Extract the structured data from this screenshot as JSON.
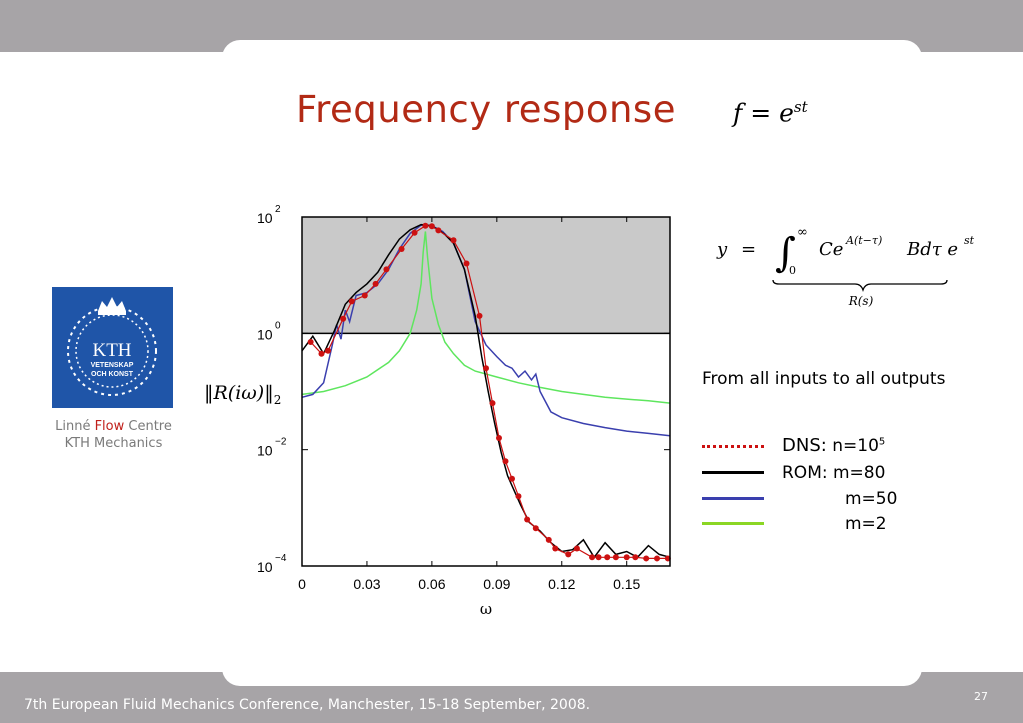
{
  "slide": {
    "title": "Frequency response",
    "title_equation": {
      "base": "f = e",
      "exponent": "st"
    },
    "logo": {
      "text": "KTH",
      "line1": "VETENSKAP",
      "line2": "OCH KONST"
    },
    "logo_caption": {
      "part1": "Linné ",
      "flow": "Flow",
      "part2": " Centre",
      "line2": "KTH Mechanics"
    },
    "subtitle": "From all inputs to all outputs",
    "equation2": {
      "lhs": "y",
      "eq": "=",
      "upper": "∞",
      "lower": "0",
      "integrand": "Ce",
      "integrand_exp": "A(t−τ)",
      "rest": "Bdτ e",
      "rest_exp": "st",
      "brace_label": "R(s)"
    },
    "footer": "7th European Fluid Mechanics Conference, Manchester, 15-18 September, 2008.",
    "page_number": "27"
  },
  "legend": [
    {
      "label": "DNS:",
      "suffix": " n=10",
      "sup": "5",
      "color": "#cc1111",
      "style": "dotted"
    },
    {
      "label": "ROM: m=80",
      "suffix": "",
      "sup": "",
      "color": "#000000",
      "style": "solid"
    },
    {
      "label": "m=50",
      "suffix": "",
      "sup": "",
      "color": "#3a3fae",
      "style": "solid"
    },
    {
      "label": "m=2",
      "suffix": "",
      "sup": "",
      "color": "#8bd624",
      "style": "solid"
    }
  ],
  "chart_data": {
    "type": "line",
    "xlabel": "ω",
    "ylabel": "‖R(iω)‖₂",
    "xlim": [
      0,
      0.17
    ],
    "ylim_log10": [
      -4,
      2
    ],
    "y_scale": "log",
    "x_ticks": [
      "0",
      "0.03",
      "0.06",
      "0.09",
      "0.12",
      "0.15"
    ],
    "x_tick_values": [
      0,
      0.03,
      0.06,
      0.09,
      0.12,
      0.15
    ],
    "y_ticks": [
      {
        "base": "10",
        "exp": "2",
        "value": 2
      },
      {
        "base": "10",
        "exp": "0",
        "value": 0
      },
      {
        "base": "10",
        "exp": "−2",
        "value": -2
      },
      {
        "base": "10",
        "exp": "−4",
        "value": -4
      }
    ],
    "shaded_region": {
      "y_from_log10": 0,
      "y_to_log10": 2,
      "color": "#c9c9c9"
    },
    "series": [
      {
        "name": "DNS: n=10^5",
        "color": "#cc1111",
        "markers": true,
        "x": [
          0.004,
          0.009,
          0.012,
          0.019,
          0.023,
          0.029,
          0.034,
          0.039,
          0.046,
          0.052,
          0.057,
          0.06,
          0.063,
          0.07,
          0.076,
          0.082,
          0.085,
          0.088,
          0.091,
          0.094,
          0.097,
          0.1,
          0.104,
          0.108,
          0.114,
          0.117,
          0.123,
          0.127,
          0.134,
          0.137,
          0.141,
          0.145,
          0.15,
          0.154,
          0.159,
          0.164,
          0.169
        ],
        "y": [
          -0.15,
          -0.35,
          -0.3,
          0.25,
          0.55,
          0.65,
          0.85,
          1.1,
          1.45,
          1.73,
          1.85,
          1.84,
          1.77,
          1.6,
          1.2,
          0.3,
          -0.6,
          -1.2,
          -1.8,
          -2.2,
          -2.5,
          -2.8,
          -3.2,
          -3.35,
          -3.55,
          -3.7,
          -3.8,
          -3.7,
          -3.85,
          -3.85,
          -3.85,
          -3.85,
          -3.85,
          -3.85,
          -3.87,
          -3.87,
          -3.87
        ]
      },
      {
        "name": "ROM: m=80",
        "color": "#000000",
        "markers": false,
        "x": [
          0.0,
          0.005,
          0.01,
          0.015,
          0.02,
          0.025,
          0.03,
          0.035,
          0.04,
          0.045,
          0.05,
          0.055,
          0.058,
          0.06,
          0.063,
          0.066,
          0.07,
          0.075,
          0.08,
          0.083,
          0.086,
          0.089,
          0.092,
          0.095,
          0.098,
          0.101,
          0.105,
          0.11,
          0.115,
          0.12,
          0.125,
          0.13,
          0.135,
          0.14,
          0.145,
          0.15,
          0.155,
          0.16,
          0.165,
          0.17
        ],
        "y": [
          -0.3,
          -0.05,
          -0.35,
          0.05,
          0.5,
          0.7,
          0.85,
          1.05,
          1.35,
          1.62,
          1.78,
          1.87,
          1.86,
          1.84,
          1.78,
          1.7,
          1.55,
          1.1,
          0.3,
          -0.4,
          -1.0,
          -1.55,
          -2.05,
          -2.45,
          -2.7,
          -2.95,
          -3.25,
          -3.4,
          -3.6,
          -3.75,
          -3.72,
          -3.55,
          -3.85,
          -3.6,
          -3.8,
          -3.75,
          -3.85,
          -3.65,
          -3.8,
          -3.85
        ]
      },
      {
        "name": "m=50",
        "color": "#3a3fae",
        "markers": false,
        "x": [
          0.0,
          0.005,
          0.01,
          0.014,
          0.016,
          0.018,
          0.02,
          0.022,
          0.025,
          0.03,
          0.035,
          0.04,
          0.045,
          0.05,
          0.055,
          0.06,
          0.065,
          0.07,
          0.075,
          0.08,
          0.085,
          0.09,
          0.094,
          0.097,
          0.1,
          0.103,
          0.106,
          0.108,
          0.11,
          0.115,
          0.12,
          0.13,
          0.14,
          0.15,
          0.16,
          0.17
        ],
        "y": [
          -1.1,
          -1.05,
          -0.85,
          -0.2,
          0.15,
          -0.1,
          0.4,
          0.2,
          0.65,
          0.7,
          0.85,
          1.1,
          1.45,
          1.72,
          1.86,
          1.85,
          1.75,
          1.55,
          1.1,
          0.2,
          -0.2,
          -0.4,
          -0.55,
          -0.6,
          -0.75,
          -0.65,
          -0.8,
          -0.7,
          -1.0,
          -1.35,
          -1.45,
          -1.55,
          -1.62,
          -1.68,
          -1.72,
          -1.76
        ]
      },
      {
        "name": "m=2",
        "color": "#5ee65e",
        "markers": false,
        "x": [
          0.0,
          0.01,
          0.02,
          0.03,
          0.04,
          0.045,
          0.05,
          0.053,
          0.055,
          0.056,
          0.057,
          0.058,
          0.06,
          0.063,
          0.066,
          0.07,
          0.075,
          0.08,
          0.09,
          0.1,
          0.11,
          0.12,
          0.13,
          0.14,
          0.15,
          0.16,
          0.17
        ],
        "y": [
          -1.05,
          -1.0,
          -0.9,
          -0.75,
          -0.5,
          -0.3,
          0.0,
          0.4,
          0.85,
          1.4,
          1.75,
          1.3,
          0.6,
          0.15,
          -0.15,
          -0.35,
          -0.55,
          -0.65,
          -0.75,
          -0.85,
          -0.93,
          -1.0,
          -1.05,
          -1.1,
          -1.13,
          -1.16,
          -1.2
        ]
      }
    ]
  }
}
